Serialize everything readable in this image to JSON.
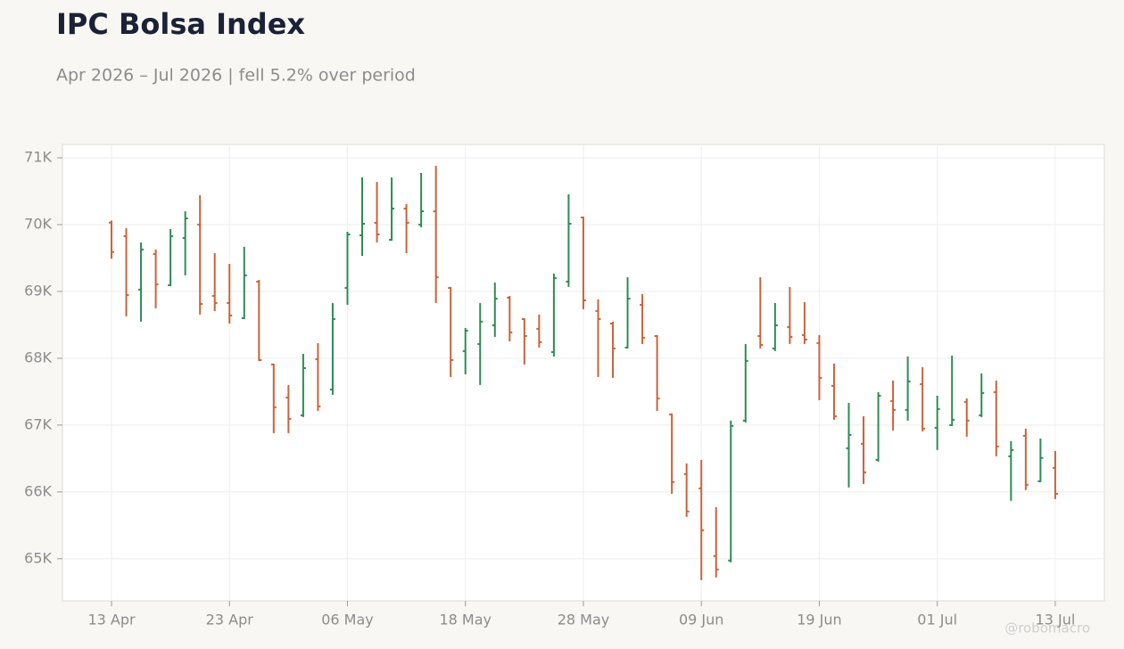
{
  "chart_data": {
    "type": "ohlc",
    "title": "IPC Bolsa Index",
    "subtitle": "Apr 2026 – Jul 2026 | fell 5.2% over period",
    "watermark": "@robomacro",
    "up_color": "#2e8b57",
    "down_color": "#c8643c",
    "grid": true,
    "categories": [
      "13 Apr",
      null,
      null,
      null,
      null,
      null,
      null,
      null,
      "23 Apr",
      null,
      null,
      null,
      null,
      null,
      null,
      null,
      "06 May",
      null,
      null,
      null,
      null,
      null,
      null,
      null,
      "18 May",
      null,
      null,
      null,
      null,
      null,
      null,
      null,
      "28 May",
      null,
      null,
      null,
      null,
      null,
      null,
      null,
      "09 Jun",
      null,
      null,
      null,
      null,
      null,
      null,
      null,
      "19 Jun",
      null,
      null,
      null,
      null,
      null,
      null,
      null,
      "01 Jul",
      null,
      null,
      null,
      null,
      null,
      null,
      null,
      "13 Jul"
    ],
    "open": [
      70030,
      69827,
      69027,
      69560,
      69093,
      69800,
      70000,
      68933,
      68827,
      68600,
      69147,
      67907,
      67413,
      67147,
      67987,
      67533,
      69053,
      69840,
      70027,
      69773,
      70240,
      70000,
      70200,
      69053,
      68107,
      68213,
      68493,
      68907,
      68587,
      68440,
      68093,
      69147,
      70107,
      68707,
      68520,
      68160,
      68800,
      68333,
      67160,
      66267,
      66053,
      65040,
      64973,
      67067,
      68333,
      68147,
      68467,
      68347,
      68227,
      67587,
      66653,
      66720,
      66480,
      67360,
      67227,
      67613,
      66960,
      67000,
      67347,
      67147,
      67493,
      66533,
      66840,
      66160,
      66360
    ],
    "high": [
      70060,
      69947,
      69733,
      69627,
      69933,
      70200,
      70440,
      69573,
      69413,
      69667,
      69173,
      67920,
      67600,
      68067,
      68227,
      68827,
      69893,
      70707,
      70640,
      70707,
      70307,
      70773,
      70880,
      69067,
      68453,
      68827,
      69133,
      68933,
      68600,
      68653,
      69267,
      70453,
      70120,
      68880,
      68547,
      69213,
      68960,
      68347,
      67173,
      66427,
      66480,
      65773,
      67067,
      68213,
      69213,
      68827,
      69067,
      68840,
      68347,
      67920,
      67333,
      67133,
      67493,
      67667,
      68027,
      67867,
      67440,
      68040,
      67400,
      67773,
      67667,
      66760,
      66947,
      66800,
      66613
    ],
    "low": [
      69490,
      68627,
      68547,
      68747,
      69080,
      69240,
      68653,
      68707,
      68520,
      68587,
      67960,
      66880,
      66880,
      67120,
      67213,
      67453,
      68800,
      69533,
      69733,
      69760,
      69573,
      69960,
      68827,
      67720,
      67760,
      67600,
      68320,
      68253,
      67907,
      68160,
      68027,
      69067,
      68733,
      67720,
      67707,
      68147,
      68213,
      67213,
      65973,
      65627,
      64680,
      64720,
      64947,
      67040,
      68147,
      68107,
      68213,
      68213,
      67373,
      67080,
      66067,
      66120,
      66453,
      66920,
      67067,
      66907,
      66627,
      66987,
      66827,
      67120,
      66533,
      65867,
      66027,
      66147,
      65893
    ],
    "close": [
      69590,
      68947,
      69627,
      69107,
      69827,
      70093,
      68813,
      68827,
      68640,
      69240,
      67973,
      67267,
      67093,
      67853,
      67280,
      68587,
      69853,
      70013,
      69853,
      70240,
      70027,
      70200,
      69213,
      67973,
      68413,
      68547,
      68893,
      68387,
      68333,
      68240,
      69200,
      70013,
      68867,
      68587,
      68147,
      68893,
      68307,
      67400,
      66147,
      65707,
      65427,
      64840,
      66987,
      67960,
      68200,
      68493,
      68320,
      68280,
      67707,
      67133,
      66853,
      66293,
      67440,
      67227,
      67653,
      66947,
      67240,
      67080,
      67067,
      67480,
      66680,
      66627,
      66107,
      66507,
      65973
    ],
    "ylim": [
      64370,
      71200
    ],
    "yticks": [
      {
        "value": 65000,
        "label": "65K"
      },
      {
        "value": 66000,
        "label": "66K"
      },
      {
        "value": 67000,
        "label": "67K"
      },
      {
        "value": 68000,
        "label": "68K"
      },
      {
        "value": 69000,
        "label": "69K"
      },
      {
        "value": 70000,
        "label": "70K"
      },
      {
        "value": 71000,
        "label": "71K"
      }
    ]
  }
}
